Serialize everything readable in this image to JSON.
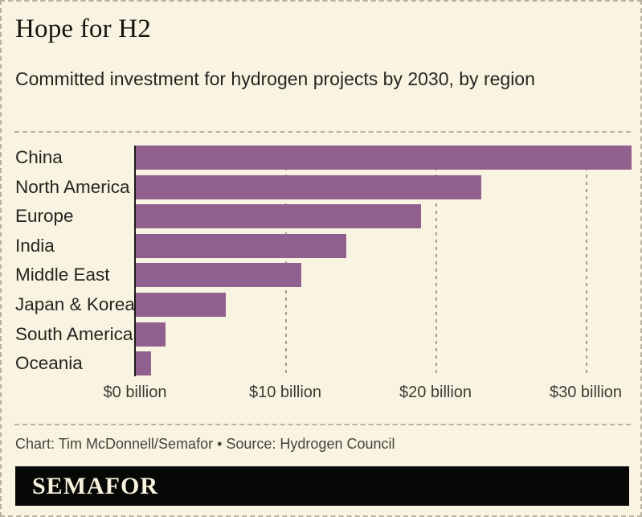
{
  "header": {
    "title": "Hope for H2",
    "subtitle": "Committed investment for hydrogen projects by 2030, by region"
  },
  "chart_data": {
    "type": "bar",
    "orientation": "horizontal",
    "title": "Hope for H2",
    "subtitle": "Committed investment for hydrogen projects by 2030, by region",
    "unit": "billion USD",
    "categories": [
      "China",
      "North America",
      "Europe",
      "India",
      "Middle East",
      "Japan & Korea",
      "South America",
      "Oceania"
    ],
    "values": [
      33,
      23,
      19,
      14,
      11,
      6,
      2,
      1
    ],
    "x_ticks": [
      0,
      10,
      20,
      30
    ],
    "x_tick_labels": [
      "$0 billion",
      "$10 billion",
      "$20 billion",
      "$30 billion"
    ],
    "xlim": [
      0,
      33
    ],
    "grid": "vertical-dotted-at-10-20-30",
    "legend": "none",
    "bar_color": "#90618f"
  },
  "footer": {
    "credit": "Chart: Tim McDonnell/Semafor • Source: Hydrogen Council",
    "logo_text": "SEMAFOR"
  },
  "colors": {
    "background": "#f9f4e1",
    "bar": "#90618f",
    "gridline": "#a39e8c",
    "axis_line": "#1b1a16",
    "border_dash": "#b7b1a0",
    "logo_bar_bg": "#070705",
    "logo_text": "#f7f2de"
  }
}
